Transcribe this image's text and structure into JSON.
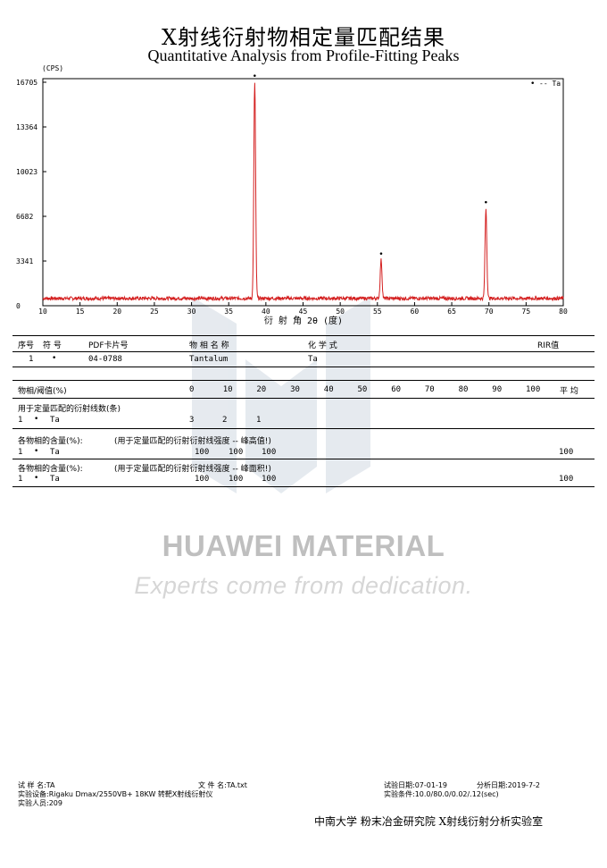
{
  "title_cn": "X射线衍射物相定量匹配结果",
  "title_en": "Quantitative Analysis from Profile-Fitting Peaks",
  "chart_data": {
    "type": "line",
    "y_unit": "(CPS)",
    "xlabel": "衍 射 角 2θ (度)",
    "xlim": [
      10,
      80
    ],
    "ylim": [
      0,
      16705
    ],
    "x_ticks": [
      10,
      15,
      20,
      25,
      30,
      35,
      40,
      45,
      50,
      55,
      60,
      65,
      70,
      75,
      80
    ],
    "y_ticks": [
      "16705",
      "13364",
      "10023",
      "6682",
      "3341",
      "0"
    ],
    "y_tick_values": [
      16705,
      13364,
      10023,
      6682,
      3341,
      0
    ],
    "legend": {
      "marker": "•",
      "label": "-- Ta",
      "position": "top-right"
    },
    "series_color": "#d42020",
    "baseline": 550,
    "peaks": [
      {
        "x": 38.5,
        "y": 16705,
        "marker": "•"
      },
      {
        "x": 55.5,
        "y": 3420,
        "marker": "•"
      },
      {
        "x": 69.6,
        "y": 7250,
        "marker": "•"
      }
    ]
  },
  "phase_table": {
    "headers": [
      "序号",
      "符 号",
      "PDF卡片号",
      "物 相 名 称",
      "化 学 式",
      "RIR值"
    ],
    "row": {
      "index": "1",
      "symbol": "•",
      "pdf": "04-0788",
      "name": "Tantalum",
      "formula": "Ta",
      "rir": ""
    }
  },
  "threshold": {
    "label": "物相/阈值(%)",
    "values": [
      "0",
      "10",
      "20",
      "30",
      "40",
      "50",
      "60",
      "70",
      "80",
      "90",
      "100"
    ],
    "avg_label": "平 均"
  },
  "lines_used": {
    "label": "用于定量匹配的衍射线数(条)",
    "row": {
      "index": "1",
      "symbol": "•",
      "name": "Ta",
      "values": [
        "3",
        "2",
        "1"
      ]
    }
  },
  "content_peak_height": {
    "label": "各物相的含量(%):",
    "note": "(用于定量匹配的衍射衍射线强度 -- 峰高值!)",
    "row": {
      "index": "1",
      "symbol": "•",
      "name": "Ta",
      "values": [
        "100",
        "100",
        "100"
      ],
      "avg": "100"
    }
  },
  "content_peak_area": {
    "label": "各物相的含量(%):",
    "note": "(用于定量匹配的衍射衍射线强度 -- 峰面积!)",
    "row": {
      "index": "1",
      "symbol": "•",
      "name": "Ta",
      "values": [
        "100",
        "100",
        "100"
      ],
      "avg": "100"
    }
  },
  "watermark": {
    "brand": "HUAWEI MATERIAL",
    "slogan": "Experts come from dedication."
  },
  "footer": {
    "sample_name": "试 样 名:TA",
    "file_name": "文 件 名:TA.txt",
    "test_date": "试验日期:07-01-19",
    "analysis_date": "分析日期:2019-7-2",
    "equipment": "实验设备:Rigaku Dmax/2550VB+ 18KW 转靶X射线衍射仪",
    "conditions": "实验条件:10.0/80.0/0.02/.12(sec)",
    "operator": "实验人员:209",
    "institution": "中南大学  粉末冶金研究院  X射线衍射分析实验室"
  }
}
